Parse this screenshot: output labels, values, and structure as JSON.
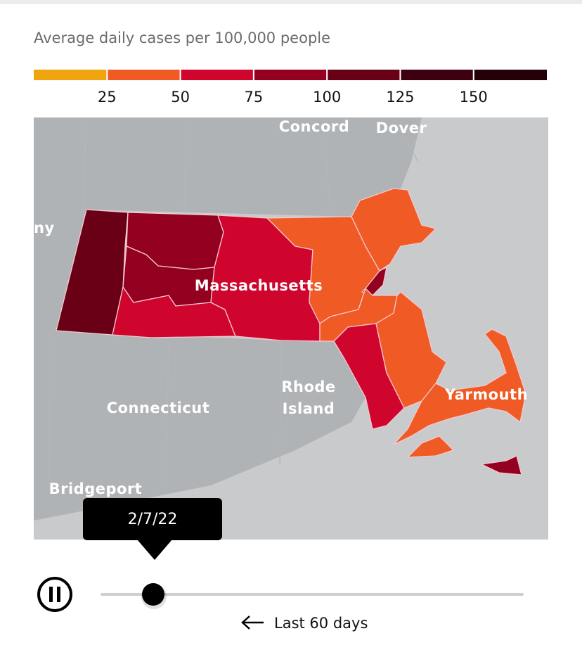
{
  "legend": {
    "title": "Average daily cases per 100,000 people",
    "colors": [
      "#f0a50f",
      "#f05a24",
      "#d0052e",
      "#930020",
      "#6a0015",
      "#3d0010",
      "#250008"
    ],
    "ticks": [
      25,
      50,
      75,
      100,
      125,
      150
    ]
  },
  "map": {
    "labels": {
      "concord": "Concord",
      "dover": "Dover",
      "albany": "ny",
      "massachusetts": "Massachusetts",
      "rhode_island": [
        "Rhode",
        "Island"
      ],
      "connecticut": "Connecticut",
      "yarmouth": "Yarmouth",
      "bridgeport": "Bridgeport"
    }
  },
  "player": {
    "date": "2/7/22",
    "range": "Last 60 days"
  }
}
